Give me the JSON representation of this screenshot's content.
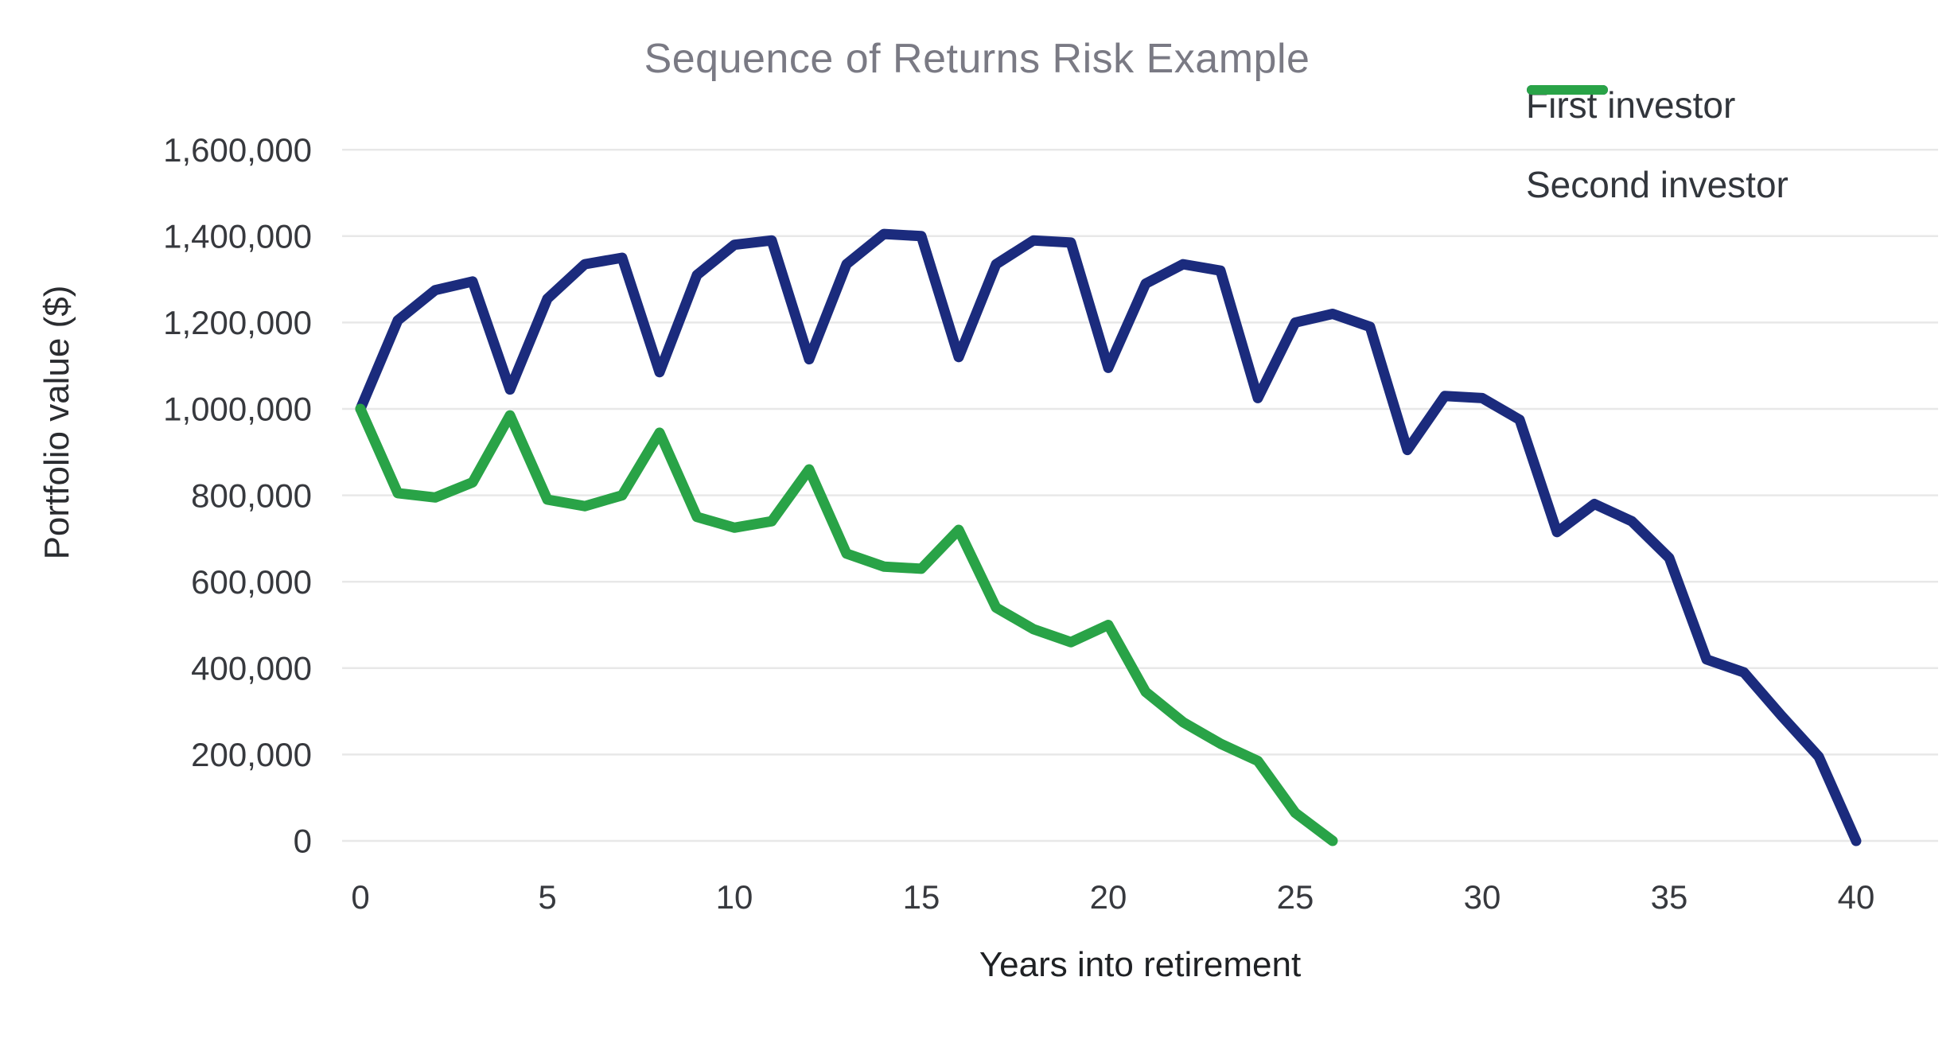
{
  "title": "Sequence of Returns Risk Example",
  "legend": {
    "items": [
      {
        "label": "First investor",
        "color": "#1b2b7d"
      },
      {
        "label": "Second investor",
        "color": "#29a347"
      }
    ]
  },
  "y_axis": {
    "title": "Portfolio value ($)",
    "tick_labels": [
      "0",
      "200,000",
      "400,000",
      "600,000",
      "800,000",
      "1,000,000",
      "1,200,000",
      "1,400,000",
      "1,600,000"
    ]
  },
  "x_axis": {
    "title": "Years into retirement",
    "tick_labels": [
      "0",
      "5",
      "10",
      "15",
      "20",
      "25",
      "30",
      "35",
      "40"
    ],
    "tick_values": [
      0,
      5,
      10,
      15,
      20,
      25,
      30,
      35,
      40
    ]
  },
  "chart_data": {
    "type": "line",
    "title": "Sequence of Returns Risk Example",
    "xlabel": "Years into retirement",
    "ylabel": "Portfolio value ($)",
    "xlim": [
      0,
      40
    ],
    "ylim": [
      0,
      1600000
    ],
    "grid": "horizontal",
    "legend_position": "top-right",
    "grid_color": "#e8e8e8",
    "tick_color": "#37393e",
    "series": [
      {
        "name": "First investor",
        "color": "#1b2b7d",
        "x": [
          0,
          1,
          2,
          3,
          4,
          5,
          6,
          7,
          8,
          9,
          10,
          11,
          12,
          13,
          14,
          15,
          16,
          17,
          18,
          19,
          20,
          21,
          22,
          23,
          24,
          25,
          26,
          27,
          28,
          29,
          30,
          31,
          32,
          33,
          34,
          35,
          36,
          37,
          38,
          39,
          40
        ],
        "values": [
          1000000,
          1205000,
          1275000,
          1295000,
          1045000,
          1255000,
          1335000,
          1350000,
          1085000,
          1310000,
          1380000,
          1390000,
          1115000,
          1335000,
          1405000,
          1400000,
          1120000,
          1335000,
          1390000,
          1385000,
          1095000,
          1290000,
          1335000,
          1320000,
          1025000,
          1200000,
          1220000,
          1190000,
          905000,
          1030000,
          1025000,
          975000,
          715000,
          780000,
          740000,
          655000,
          420000,
          390000,
          290000,
          195000,
          0
        ]
      },
      {
        "name": "Second investor",
        "color": "#29a347",
        "x": [
          0,
          1,
          2,
          3,
          4,
          5,
          6,
          7,
          8,
          9,
          10,
          11,
          12,
          13,
          14,
          15,
          16,
          17,
          18,
          19,
          20,
          21,
          22,
          23,
          24,
          25,
          26
        ],
        "values": [
          1000000,
          805000,
          795000,
          830000,
          985000,
          790000,
          775000,
          800000,
          945000,
          750000,
          725000,
          740000,
          860000,
          665000,
          635000,
          630000,
          720000,
          540000,
          490000,
          460000,
          500000,
          345000,
          275000,
          225000,
          185000,
          65000,
          0
        ]
      }
    ]
  }
}
